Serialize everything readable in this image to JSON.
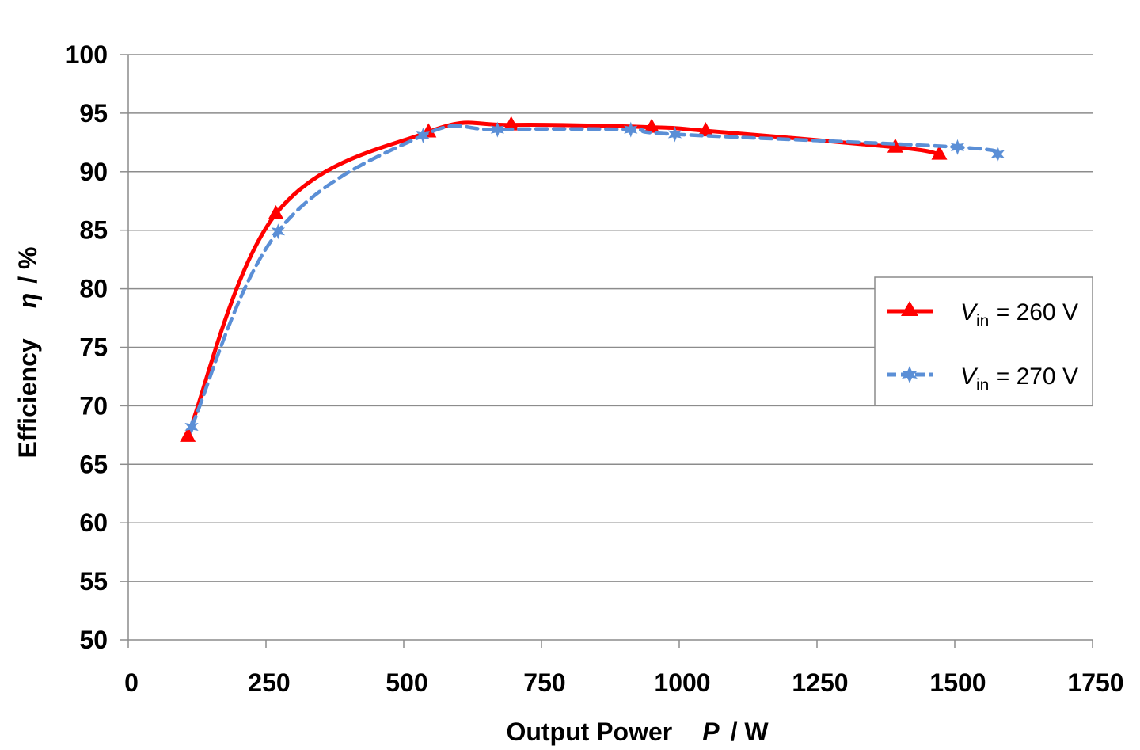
{
  "chart_data": {
    "type": "line",
    "xlabel": {
      "main": "Output Power",
      "symbol": "P",
      "unit": "/ W"
    },
    "ylabel": {
      "main": "Efficiency",
      "symbol": "η",
      "unit": "/ %"
    },
    "xlim": [
      0,
      1750
    ],
    "ylim": [
      50,
      100
    ],
    "xticks": [
      "0",
      "250",
      "500",
      "750",
      "1000",
      "1250",
      "1500",
      "1750"
    ],
    "yticks": [
      "50",
      "55",
      "60",
      "65",
      "70",
      "75",
      "80",
      "85",
      "90",
      "95",
      "100"
    ],
    "grid": "horizontal",
    "legend_position": "right",
    "series": [
      {
        "name": "V_in = 260 V",
        "name_prefix": "V",
        "name_sub": "in",
        "name_rest": " = 260 V",
        "color": "#ff0000",
        "marker": "triangle",
        "line": "solid",
        "points": [
          [
            108,
            67.4
          ],
          [
            268,
            86.4
          ],
          [
            545,
            93.4
          ],
          [
            695,
            94.0
          ],
          [
            950,
            93.8
          ],
          [
            1048,
            93.5
          ],
          [
            1392,
            92.1
          ],
          [
            1472,
            91.5
          ]
        ]
      },
      {
        "name": "V_in = 270 V",
        "name_prefix": "V",
        "name_sub": "in",
        "name_rest": " = 270 V",
        "color": "#5b8fd6",
        "marker": "star",
        "line": "dashed",
        "points": [
          [
            115,
            68.2
          ],
          [
            272,
            84.9
          ],
          [
            535,
            93.1
          ],
          [
            670,
            93.6
          ],
          [
            912,
            93.6
          ],
          [
            992,
            93.2
          ],
          [
            1505,
            92.1
          ],
          [
            1578,
            91.5
          ]
        ]
      }
    ]
  }
}
